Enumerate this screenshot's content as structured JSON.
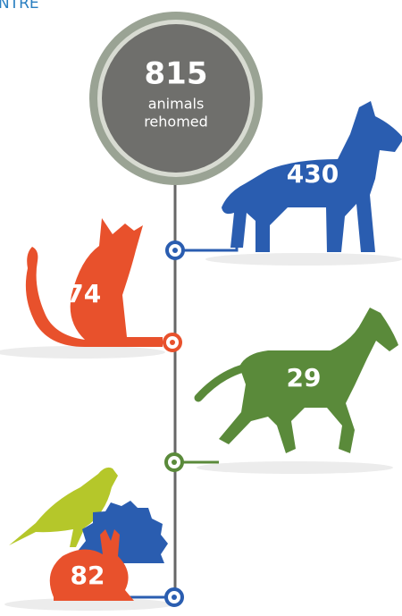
{
  "header": {
    "title": "NTRE"
  },
  "total": {
    "value": 815,
    "lines": [
      "animals",
      "rehomed"
    ]
  },
  "animals": [
    {
      "value": 430
    },
    {
      "value": 274
    },
    {
      "value": 29
    },
    {
      "value": 82
    }
  ]
}
